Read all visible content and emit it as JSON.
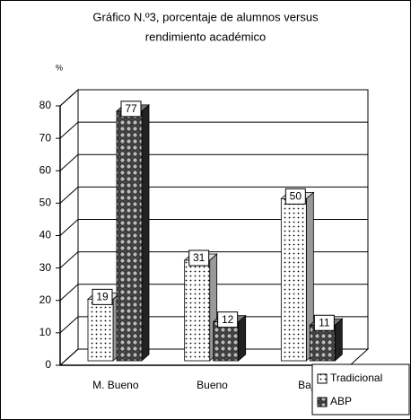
{
  "chart_data": {
    "type": "bar3d",
    "title": [
      "Gráfico N.º3, porcentaje de alumnos versus",
      "rendimiento académico"
    ],
    "y_label": "%",
    "categories": [
      "M. Bueno",
      "Bueno",
      "Bajo"
    ],
    "series": [
      {
        "name": "Tradicional",
        "color": "#ffffff",
        "values": [
          19,
          31,
          50
        ]
      },
      {
        "name": "ABP",
        "color": "#555555",
        "values": [
          77,
          12,
          11
        ]
      }
    ],
    "ylim": [
      0,
      80
    ],
    "yticks": [
      0,
      10,
      20,
      30,
      40,
      50,
      60,
      70,
      80
    ],
    "grid": true,
    "legend": "bottom-right"
  }
}
